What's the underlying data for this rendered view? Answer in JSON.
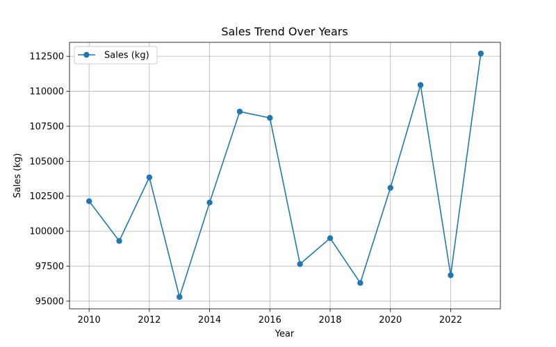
{
  "chart_data": {
    "type": "line",
    "title": "Sales Trend Over Years",
    "xlabel": "Year",
    "ylabel": "Sales (kg)",
    "xlim": [
      2009.35,
      2023.65
    ],
    "ylim": [
      94450,
      113500
    ],
    "x_ticks": [
      2010,
      2012,
      2014,
      2016,
      2018,
      2020,
      2022
    ],
    "y_ticks": [
      95000,
      97500,
      100000,
      102500,
      105000,
      107500,
      110000,
      112500
    ],
    "grid": true,
    "legend_position": "upper-left",
    "series": [
      {
        "name": "Sales (kg)",
        "color": "#1f77b4",
        "marker": "circle",
        "x": [
          2010,
          2011,
          2012,
          2013,
          2014,
          2015,
          2016,
          2017,
          2018,
          2019,
          2020,
          2021,
          2022,
          2023
        ],
        "y": [
          102150,
          99300,
          103850,
          95300,
          102050,
          108550,
          108100,
          97650,
          99500,
          96300,
          103100,
          110450,
          96850,
          112700
        ]
      }
    ]
  }
}
